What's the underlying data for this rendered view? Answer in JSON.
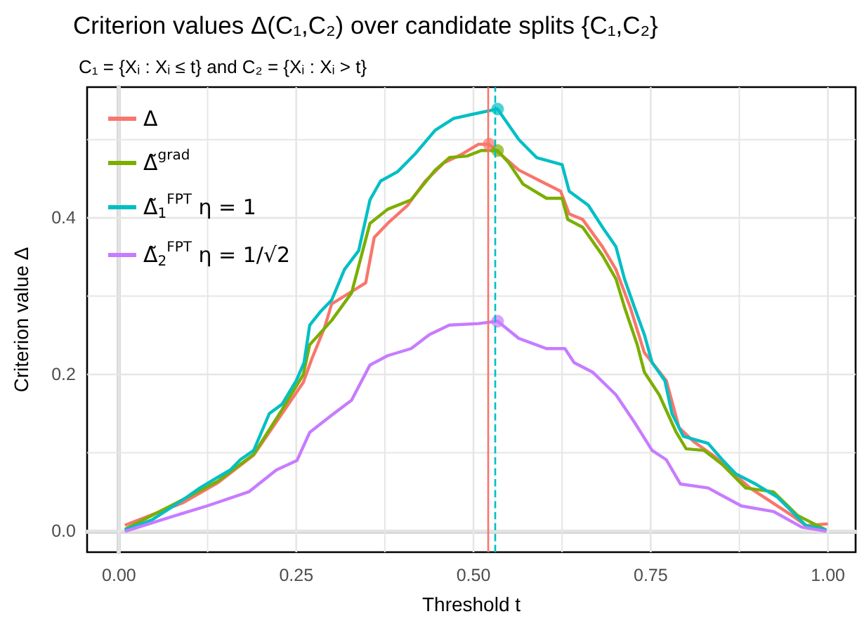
{
  "chart_data": {
    "type": "line",
    "title": "Criterion values Δ(C₁,C₂) over candidate splits {C₁,C₂}",
    "subtitle": "C₁ = {Xᵢ : Xᵢ ≤ t} and C₂ = {Xᵢ : Xᵢ > t}",
    "xlabel": "Threshold t",
    "ylabel": "Criterion value Δ",
    "xlim": [
      -0.045,
      1.039
    ],
    "ylim": [
      -0.027,
      0.567
    ],
    "xticks": [
      {
        "value": 0,
        "label": "0.00"
      },
      {
        "value": 0.125,
        "label": null
      },
      {
        "value": 0.25,
        "label": "0.25"
      },
      {
        "value": 0.375,
        "label": null
      },
      {
        "value": 0.5,
        "label": "0.50"
      },
      {
        "value": 0.625,
        "label": null
      },
      {
        "value": 0.75,
        "label": "0.75"
      },
      {
        "value": 0.875,
        "label": null
      },
      {
        "value": 1,
        "label": "1.00"
      }
    ],
    "yticks": [
      {
        "value": 0,
        "label": "0.0"
      },
      {
        "value": 0.1,
        "label": null
      },
      0.2,
      {
        "value": 0.3,
        "label": null
      },
      0.4,
      {
        "value": 0.5,
        "label": null
      }
    ],
    "grid": true,
    "legend": "top left",
    "marker": "none",
    "line_style": "solid",
    "ref_lines": [
      {
        "axis": "x",
        "value": 0.522,
        "color": "#f8766d",
        "line_style": "solid"
      },
      {
        "axis": "x",
        "value": 0.534,
        "color": "#00bfc4",
        "line_style": "dashed"
      }
    ],
    "series": [
      {
        "name": "Δ",
        "color": "#f8766d",
        "x": [
          0.01,
          0.09,
          0.14,
          0.19,
          0.23,
          0.26,
          0.272,
          0.29,
          0.3,
          0.348,
          0.36,
          0.379,
          0.407,
          0.432,
          0.458,
          0.485,
          0.507,
          0.522,
          0.564,
          0.623,
          0.635,
          0.654,
          0.682,
          0.701,
          0.721,
          0.741,
          0.772,
          0.79,
          0.811,
          0.839,
          0.89,
          0.949,
          0.969,
          0.998
        ],
        "values": [
          0.008,
          0.036,
          0.062,
          0.097,
          0.15,
          0.19,
          0.22,
          0.26,
          0.29,
          0.317,
          0.375,
          0.393,
          0.416,
          0.447,
          0.47,
          0.482,
          0.494,
          0.494,
          0.461,
          0.434,
          0.405,
          0.398,
          0.363,
          0.334,
          0.286,
          0.228,
          0.192,
          0.132,
          0.114,
          0.096,
          0.055,
          0.02,
          0.007,
          0.009
        ]
      },
      {
        "name": "Δ̃$^{grad}$",
        "color": "#7cae00",
        "x": [
          0.01,
          0.09,
          0.14,
          0.19,
          0.23,
          0.26,
          0.269,
          0.3,
          0.328,
          0.354,
          0.379,
          0.412,
          0.446,
          0.466,
          0.491,
          0.511,
          0.534,
          0.55,
          0.57,
          0.603,
          0.625,
          0.633,
          0.654,
          0.682,
          0.701,
          0.713,
          0.731,
          0.741,
          0.762,
          0.786,
          0.8,
          0.825,
          0.851,
          0.884,
          0.923,
          0.957,
          0.996
        ],
        "values": [
          0.003,
          0.04,
          0.064,
          0.098,
          0.155,
          0.2,
          0.238,
          0.269,
          0.304,
          0.393,
          0.411,
          0.423,
          0.461,
          0.477,
          0.479,
          0.486,
          0.486,
          0.47,
          0.443,
          0.425,
          0.425,
          0.398,
          0.388,
          0.352,
          0.322,
          0.286,
          0.238,
          0.203,
          0.174,
          0.126,
          0.105,
          0.103,
          0.085,
          0.055,
          0.05,
          0.02,
          0.002
        ]
      },
      {
        "name": "Δ̃$_{1}$$^{FPT}$ η = 1",
        "color": "#00bfc4",
        "x": [
          0.01,
          0.046,
          0.092,
          0.114,
          0.138,
          0.157,
          0.171,
          0.19,
          0.212,
          0.23,
          0.25,
          0.261,
          0.269,
          0.285,
          0.3,
          0.318,
          0.338,
          0.354,
          0.369,
          0.393,
          0.418,
          0.446,
          0.472,
          0.497,
          0.534,
          0.564,
          0.589,
          0.625,
          0.635,
          0.662,
          0.682,
          0.701,
          0.713,
          0.727,
          0.741,
          0.752,
          0.77,
          0.78,
          0.796,
          0.831,
          0.851,
          0.87,
          0.898,
          0.929,
          0.949,
          0.969,
          0.996
        ],
        "values": [
          0.002,
          0.014,
          0.041,
          0.055,
          0.068,
          0.078,
          0.091,
          0.103,
          0.15,
          0.162,
          0.192,
          0.215,
          0.263,
          0.281,
          0.295,
          0.334,
          0.358,
          0.423,
          0.447,
          0.459,
          0.482,
          0.512,
          0.527,
          0.532,
          0.539,
          0.5,
          0.477,
          0.468,
          0.434,
          0.416,
          0.388,
          0.363,
          0.322,
          0.286,
          0.251,
          0.215,
          0.192,
          0.15,
          0.121,
          0.112,
          0.091,
          0.073,
          0.06,
          0.043,
          0.025,
          0.007,
          0.002
        ]
      },
      {
        "name": "Δ̃$_{2}$$^{FPT}$ η = 1/√2",
        "color": "#c77cff",
        "x": [
          0.01,
          0.059,
          0.124,
          0.183,
          0.222,
          0.251,
          0.269,
          0.3,
          0.328,
          0.354,
          0.379,
          0.412,
          0.438,
          0.466,
          0.507,
          0.534,
          0.564,
          0.603,
          0.629,
          0.642,
          0.668,
          0.701,
          0.727,
          0.752,
          0.772,
          0.792,
          0.831,
          0.878,
          0.923,
          0.963,
          0.996
        ],
        "values": [
          0,
          0.014,
          0.032,
          0.05,
          0.078,
          0.09,
          0.126,
          0.148,
          0.167,
          0.212,
          0.224,
          0.233,
          0.251,
          0.263,
          0.265,
          0.268,
          0.246,
          0.233,
          0.233,
          0.215,
          0.203,
          0.174,
          0.139,
          0.103,
          0.091,
          0.06,
          0.055,
          0.032,
          0.025,
          0.005,
          0
        ]
      },
      {
        "type": "scatter",
        "marker": "circle",
        "x": [
          0.522,
          0.534,
          0.534,
          0.534
        ],
        "values": [
          0.494,
          0.486,
          0.539,
          0.268
        ],
        "colors": [
          "#f8766d",
          "#7cae00",
          "#00bfc4",
          "#c77cff"
        ]
      }
    ]
  }
}
